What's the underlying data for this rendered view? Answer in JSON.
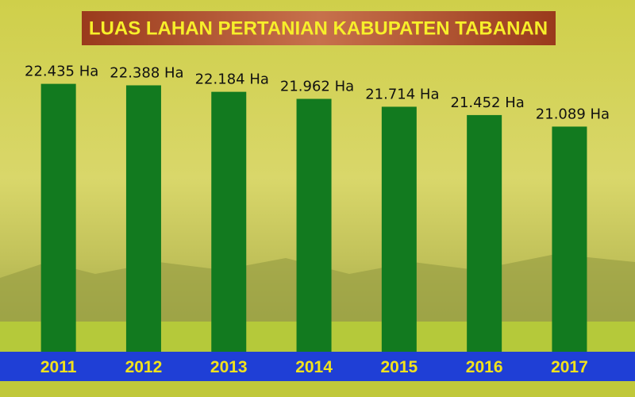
{
  "chart_data": {
    "type": "bar",
    "title": "LUAS LAHAN PERTANIAN KABUPATEN TABANAN",
    "categories": [
      "2011",
      "2012",
      "2013",
      "2014",
      "2015",
      "2016",
      "2017"
    ],
    "values": [
      22435,
      22388,
      22184,
      21962,
      21714,
      21452,
      21089
    ],
    "value_labels": [
      "22.435 Ha",
      "22.388 Ha",
      "22.184 Ha",
      "21.962 Ha",
      "21.714 Ha",
      "21.452 Ha",
      "21.089 Ha"
    ],
    "color": "#127a1f",
    "ylim": [
      14000,
      23000
    ]
  }
}
